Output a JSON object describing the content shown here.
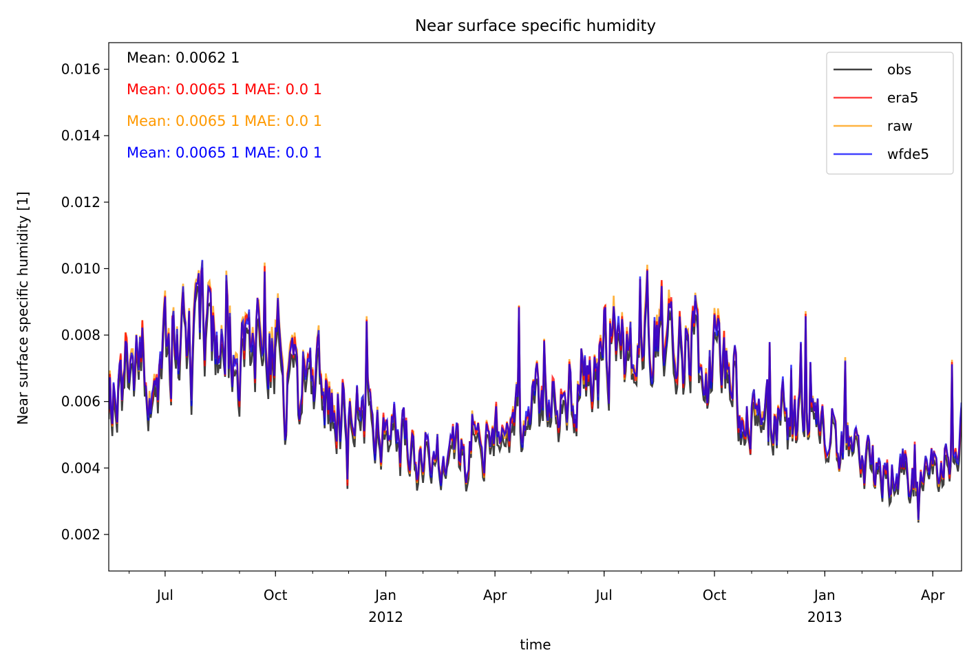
{
  "chart_data": {
    "type": "line",
    "title": "Near surface specific humidity",
    "xlabel": "time",
    "ylabel": "Near surface specific humidity [1]",
    "x_range": [
      "2011-05-15",
      "2013-04-25"
    ],
    "ylim": [
      0.0009,
      0.0168
    ],
    "y_ticks": [
      0.002,
      0.004,
      0.006,
      0.008,
      0.01,
      0.012,
      0.014,
      0.016
    ],
    "y_tick_labels": [
      "0.002",
      "0.004",
      "0.006",
      "0.008",
      "0.010",
      "0.012",
      "0.014",
      "0.016"
    ],
    "x_major_ticks": [
      {
        "date": "2011-07-01",
        "label": "Jul",
        "sublabel": ""
      },
      {
        "date": "2011-10-01",
        "label": "Oct",
        "sublabel": ""
      },
      {
        "date": "2012-01-01",
        "label": "Jan",
        "sublabel": "2012"
      },
      {
        "date": "2012-04-01",
        "label": "Apr",
        "sublabel": ""
      },
      {
        "date": "2012-07-01",
        "label": "Jul",
        "sublabel": ""
      },
      {
        "date": "2012-10-01",
        "label": "Oct",
        "sublabel": ""
      },
      {
        "date": "2013-01-01",
        "label": "Jan",
        "sublabel": "2013"
      },
      {
        "date": "2013-04-01",
        "label": "Apr",
        "sublabel": ""
      }
    ],
    "grid": false,
    "legend_position": "top-right",
    "series": [
      {
        "name": "obs",
        "color": "#000000",
        "mean_label": "Mean: 0.0062 1",
        "seasonal_points": [
          [
            "2011-05-15",
            0.0063
          ],
          [
            "2011-07-01",
            0.0072
          ],
          [
            "2011-08-15",
            0.0076
          ],
          [
            "2011-10-01",
            0.0071
          ],
          [
            "2011-11-15",
            0.0059
          ],
          [
            "2012-01-01",
            0.0048
          ],
          [
            "2012-02-15",
            0.004
          ],
          [
            "2012-04-01",
            0.0046
          ],
          [
            "2012-05-15",
            0.0058
          ],
          [
            "2012-07-01",
            0.0074
          ],
          [
            "2012-08-15",
            0.0079
          ],
          [
            "2012-10-01",
            0.0068
          ],
          [
            "2012-11-15",
            0.0052
          ],
          [
            "2013-01-01",
            0.005
          ],
          [
            "2013-02-15",
            0.0038
          ],
          [
            "2013-04-01",
            0.0036
          ],
          [
            "2013-04-25",
            0.005
          ]
        ]
      },
      {
        "name": "era5",
        "color": "#ff0000",
        "mean_label": "Mean: 0.0065 1 MAE: 0.0 1",
        "seasonal_points": [
          [
            "2011-05-15",
            0.0066
          ],
          [
            "2011-07-01",
            0.0075
          ],
          [
            "2011-08-15",
            0.0079
          ],
          [
            "2011-10-01",
            0.0075
          ],
          [
            "2011-11-15",
            0.0062
          ],
          [
            "2012-01-01",
            0.0051
          ],
          [
            "2012-02-15",
            0.0042
          ],
          [
            "2012-04-01",
            0.0049
          ],
          [
            "2012-05-15",
            0.0061
          ],
          [
            "2012-07-01",
            0.0077
          ],
          [
            "2012-08-15",
            0.0082
          ],
          [
            "2012-10-01",
            0.0071
          ],
          [
            "2012-11-15",
            0.0055
          ],
          [
            "2013-01-01",
            0.0052
          ],
          [
            "2013-02-15",
            0.004
          ],
          [
            "2013-04-01",
            0.0038
          ],
          [
            "2013-04-25",
            0.0053
          ]
        ]
      },
      {
        "name": "raw",
        "color": "#ff9900",
        "mean_label": "Mean: 0.0065 1 MAE: 0.0 1",
        "seasonal_points": [
          [
            "2011-05-15",
            0.0066
          ],
          [
            "2011-07-01",
            0.0076
          ],
          [
            "2011-08-15",
            0.008
          ],
          [
            "2011-10-01",
            0.0077
          ],
          [
            "2011-11-15",
            0.0063
          ],
          [
            "2012-01-01",
            0.0051
          ],
          [
            "2012-02-15",
            0.0042
          ],
          [
            "2012-04-01",
            0.0049
          ],
          [
            "2012-05-15",
            0.0061
          ],
          [
            "2012-07-01",
            0.0077
          ],
          [
            "2012-08-15",
            0.0083
          ],
          [
            "2012-10-01",
            0.0072
          ],
          [
            "2012-11-15",
            0.0055
          ],
          [
            "2013-01-01",
            0.0052
          ],
          [
            "2013-02-15",
            0.004
          ],
          [
            "2013-04-01",
            0.0038
          ],
          [
            "2013-04-25",
            0.0053
          ]
        ]
      },
      {
        "name": "wfde5",
        "color": "#0000ff",
        "mean_label": "Mean: 0.0065 1 MAE: 0.0 1",
        "seasonal_points": [
          [
            "2011-05-15",
            0.0066
          ],
          [
            "2011-07-01",
            0.0075
          ],
          [
            "2011-08-15",
            0.0079
          ],
          [
            "2011-10-01",
            0.0075
          ],
          [
            "2011-11-15",
            0.0062
          ],
          [
            "2012-01-01",
            0.0051
          ],
          [
            "2012-02-15",
            0.0042
          ],
          [
            "2012-04-01",
            0.0049
          ],
          [
            "2012-05-15",
            0.0061
          ],
          [
            "2012-07-01",
            0.0077
          ],
          [
            "2012-08-15",
            0.0082
          ],
          [
            "2012-10-01",
            0.0071
          ],
          [
            "2012-11-15",
            0.0055
          ],
          [
            "2013-01-01",
            0.0052
          ],
          [
            "2013-02-15",
            0.004
          ],
          [
            "2013-04-01",
            0.0038
          ],
          [
            "2013-04-25",
            0.0053
          ]
        ]
      }
    ]
  }
}
